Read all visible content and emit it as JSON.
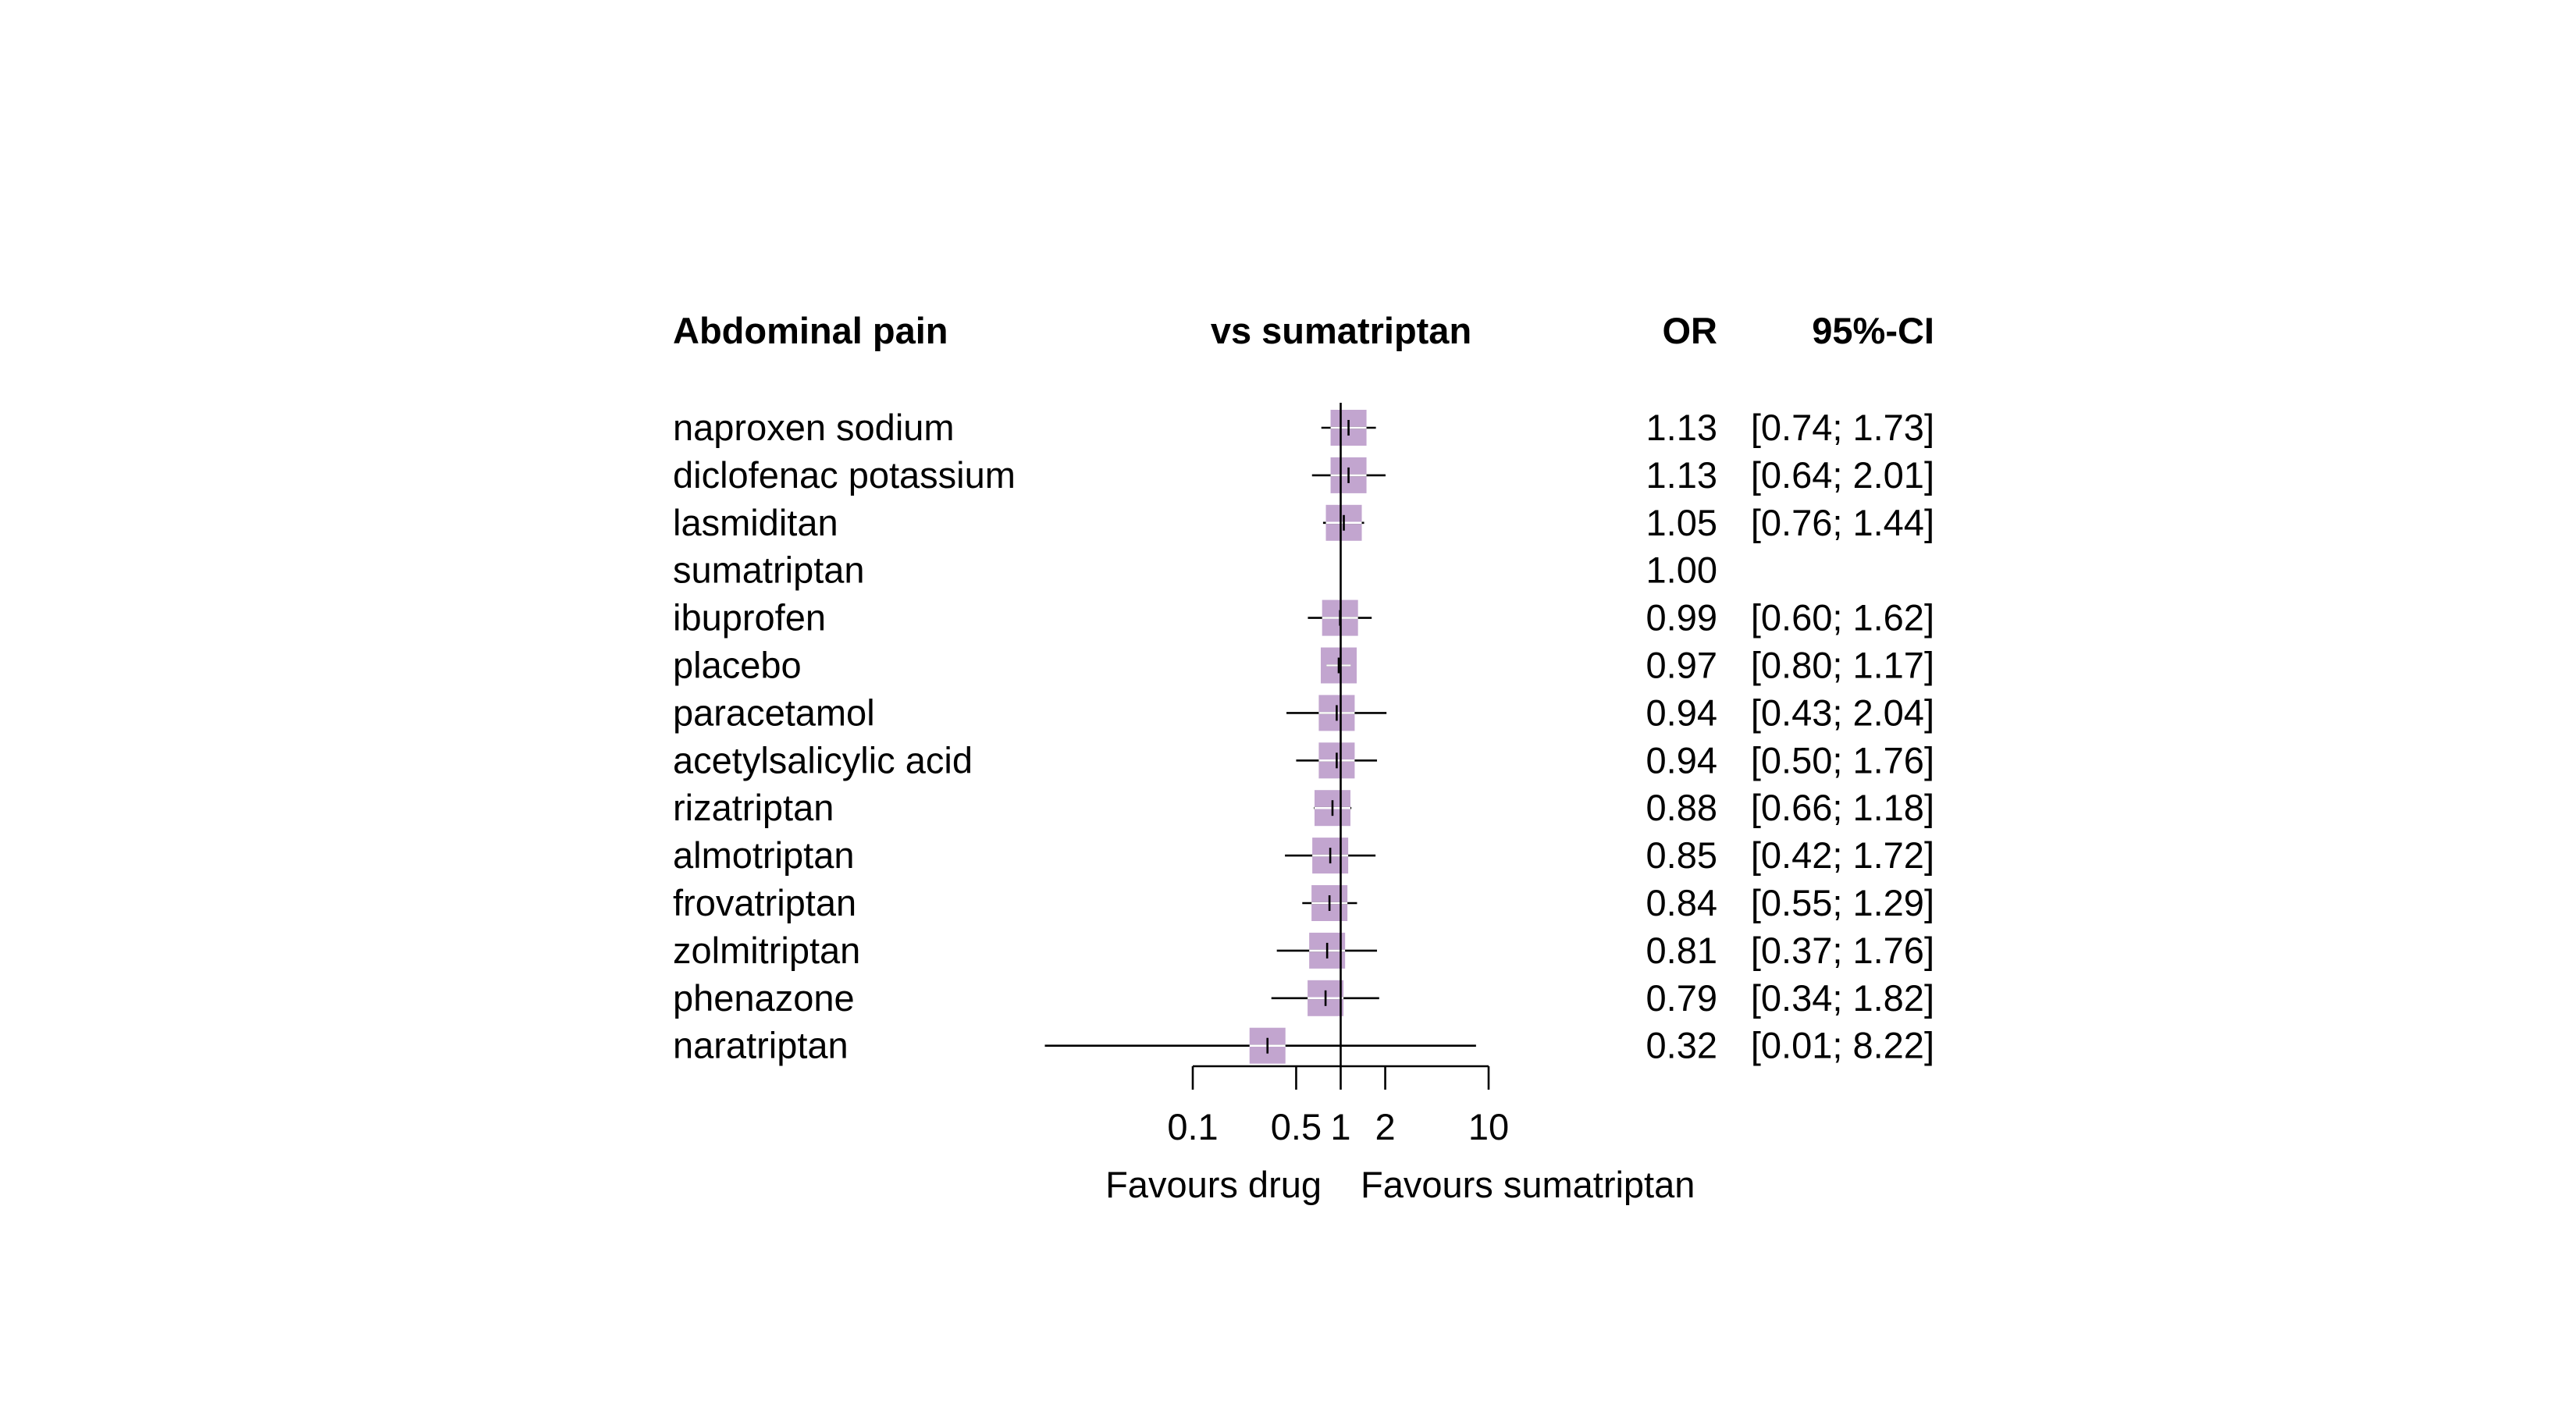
{
  "header": {
    "outcome_title": "Abdominal pain",
    "comparison_title": "vs sumatriptan",
    "or_header": "OR",
    "ci_header": "95%-CI"
  },
  "footer": {
    "left_label": "Favours drug",
    "right_label": "Favours sumatriptan"
  },
  "colors": {
    "box": "#c2a5cf",
    "ci_line": "#000000",
    "ci_inside_reference": "#ffffff"
  },
  "chart_data": {
    "type": "forest",
    "scale": "log",
    "reference": 1,
    "xlim": [
      0.1,
      10
    ],
    "xticks": [
      0.1,
      0.5,
      1,
      2,
      10
    ],
    "xtick_labels": [
      "0.1",
      "0.5",
      "1",
      "2",
      "10"
    ],
    "rows": [
      {
        "treatment": "naproxen sodium",
        "or": 1.13,
        "lower": 0.74,
        "upper": 1.73,
        "or_text": "1.13",
        "ci_text": "[0.74; 1.73]",
        "weight": 0.5
      },
      {
        "treatment": "diclofenac potassium",
        "or": 1.13,
        "lower": 0.64,
        "upper": 2.01,
        "or_text": "1.13",
        "ci_text": "[0.64; 2.01]",
        "weight": 0.5
      },
      {
        "treatment": "lasmiditan",
        "or": 1.05,
        "lower": 0.76,
        "upper": 1.44,
        "or_text": "1.05",
        "ci_text": "[0.76; 1.44]",
        "weight": 0.5
      },
      {
        "treatment": "sumatriptan",
        "or": 1.0,
        "lower": null,
        "upper": null,
        "or_text": "1.00",
        "ci_text": "",
        "weight": 0
      },
      {
        "treatment": "ibuprofen",
        "or": 0.99,
        "lower": 0.6,
        "upper": 1.62,
        "or_text": "0.99",
        "ci_text": "[0.60; 1.62]",
        "weight": 0.5
      },
      {
        "treatment": "placebo",
        "or": 0.97,
        "lower": 0.8,
        "upper": 1.17,
        "or_text": "0.97",
        "ci_text": "[0.80; 1.17]",
        "weight": 0.5
      },
      {
        "treatment": "paracetamol",
        "or": 0.94,
        "lower": 0.43,
        "upper": 2.04,
        "or_text": "0.94",
        "ci_text": "[0.43; 2.04]",
        "weight": 0.5
      },
      {
        "treatment": "acetylsalicylic acid",
        "or": 0.94,
        "lower": 0.5,
        "upper": 1.76,
        "or_text": "0.94",
        "ci_text": "[0.50; 1.76]",
        "weight": 0.5
      },
      {
        "treatment": "rizatriptan",
        "or": 0.88,
        "lower": 0.66,
        "upper": 1.18,
        "or_text": "0.88",
        "ci_text": "[0.66; 1.18]",
        "weight": 0.5
      },
      {
        "treatment": "almotriptan",
        "or": 0.85,
        "lower": 0.42,
        "upper": 1.72,
        "or_text": "0.85",
        "ci_text": "[0.42; 1.72]",
        "weight": 0.5
      },
      {
        "treatment": "frovatriptan",
        "or": 0.84,
        "lower": 0.55,
        "upper": 1.29,
        "or_text": "0.84",
        "ci_text": "[0.55; 1.29]",
        "weight": 0.5
      },
      {
        "treatment": "zolmitriptan",
        "or": 0.81,
        "lower": 0.37,
        "upper": 1.76,
        "or_text": "0.81",
        "ci_text": "[0.37; 1.76]",
        "weight": 0.5
      },
      {
        "treatment": "phenazone",
        "or": 0.79,
        "lower": 0.34,
        "upper": 1.82,
        "or_text": "0.79",
        "ci_text": "[0.34; 1.82]",
        "weight": 0.5
      },
      {
        "treatment": "naratriptan",
        "or": 0.32,
        "lower": 0.01,
        "upper": 8.22,
        "or_text": "0.32",
        "ci_text": "[0.01; 8.22]",
        "weight": 0.5
      }
    ]
  }
}
